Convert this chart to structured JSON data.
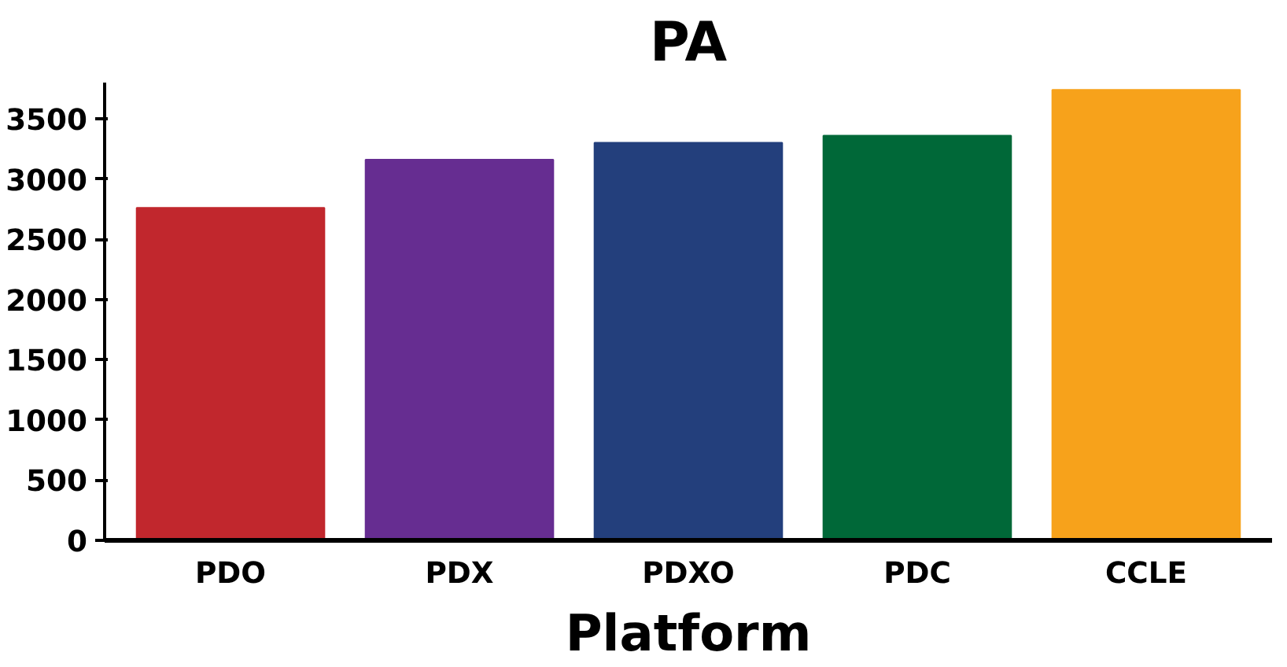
{
  "chart_data": {
    "type": "bar",
    "title": "PA",
    "xlabel": "Platform",
    "categories": [
      "PDO",
      "PDX",
      "PDXO",
      "PDC",
      "CCLE"
    ],
    "values": [
      2760,
      3160,
      3300,
      3360,
      3740
    ],
    "colors": [
      "#c1272d",
      "#662d91",
      "#233f7c",
      "#006838",
      "#f7a21b"
    ],
    "ylim": [
      0,
      3800
    ],
    "yticks": [
      0,
      500,
      1000,
      1500,
      2000,
      2500,
      3000,
      3500
    ],
    "grid": false
  }
}
